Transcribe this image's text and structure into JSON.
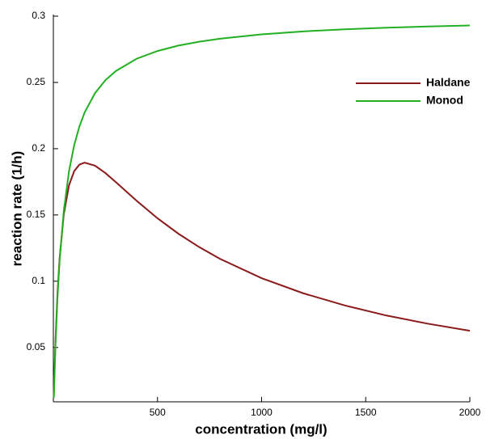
{
  "chart_data": {
    "type": "line",
    "x_label": "concentration (mg/l)",
    "y_label": "reaction rate (1/h)",
    "x": [
      2,
      10,
      20,
      30,
      50,
      75,
      100,
      125,
      150,
      200,
      250,
      300,
      400,
      500,
      600,
      700,
      800,
      1000,
      1200,
      1400,
      1600,
      1800,
      2000
    ],
    "series": [
      {
        "name": "Haldane",
        "color": "#8b1a1a",
        "values": [
          0.0128,
          0.0544,
          0.0912,
          0.1173,
          0.1504,
          0.1723,
          0.1831,
          0.188,
          0.1895,
          0.1872,
          0.1816,
          0.1748,
          0.1607,
          0.1475,
          0.1359,
          0.1258,
          0.1169,
          0.1023,
          0.0909,
          0.0817,
          0.0741,
          0.0679,
          0.0626
        ]
      },
      {
        "name": "Monod",
        "color": "#22b022",
        "values": [
          0.012,
          0.0517,
          0.0882,
          0.1154,
          0.1531,
          0.1829,
          0.2027,
          0.2168,
          0.2273,
          0.2419,
          0.2517,
          0.2586,
          0.2679,
          0.2737,
          0.2778,
          0.2807,
          0.283,
          0.2863,
          0.2885,
          0.2901,
          0.2913,
          0.2922,
          0.293
        ]
      }
    ],
    "xlim": [
      0,
      2000
    ],
    "xticks": [
      500,
      1000,
      1500,
      2000
    ],
    "ylim": [
      0.009,
      0.3
    ],
    "yticks": [
      0.05,
      0.1,
      0.15,
      0.2,
      0.25,
      0.3
    ],
    "legend": "upper-right"
  }
}
